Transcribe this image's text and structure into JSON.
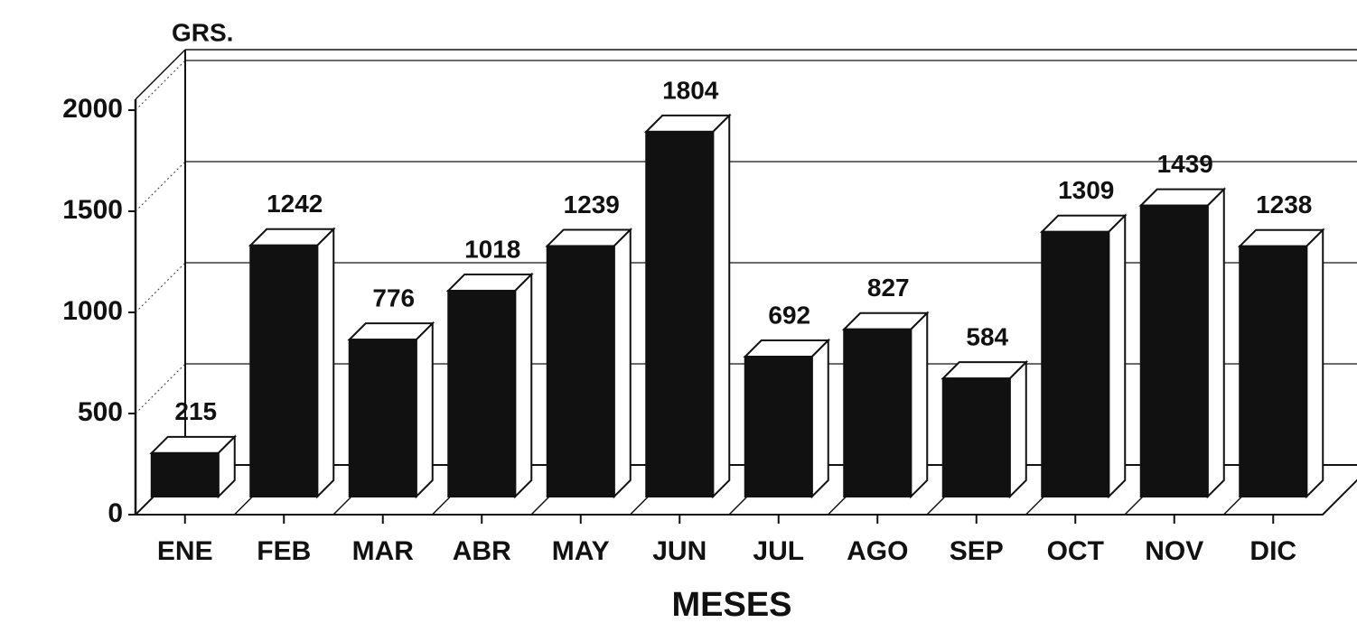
{
  "chart_data": {
    "type": "bar3d",
    "y_label": "GRS.",
    "x_label": "MESES",
    "categories": [
      "ENE",
      "FEB",
      "MAR",
      "ABR",
      "MAY",
      "JUN",
      "JUL",
      "AGO",
      "SEP",
      "OCT",
      "NOV",
      "DIC"
    ],
    "values": [
      215,
      1242,
      776,
      1018,
      1239,
      1804,
      692,
      827,
      584,
      1309,
      1439,
      1238
    ],
    "color": "#111111",
    "ylim": [
      0,
      2000
    ],
    "yticks": [
      0,
      500,
      1000,
      1500,
      2000
    ],
    "grid": true
  }
}
